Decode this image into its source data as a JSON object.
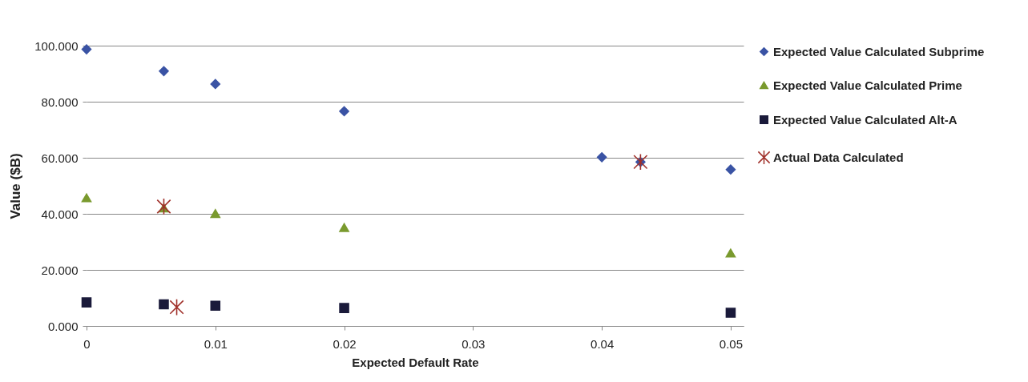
{
  "chart_data": {
    "type": "scatter",
    "xlabel": "Expected Default Rate",
    "ylabel": "Value ($B)",
    "xlim": [
      0,
      0.051
    ],
    "xticks": [
      0,
      0.01,
      0.02,
      0.03,
      0.04,
      0.05
    ],
    "ylim": [
      0,
      100
    ],
    "yticks": [
      {
        "value": 0,
        "label": "0.000"
      },
      {
        "value": 20,
        "label": "20.000"
      },
      {
        "value": 40,
        "label": "40.000"
      },
      {
        "value": 60,
        "label": "60.000"
      },
      {
        "value": 80,
        "label": "80.000"
      },
      {
        "value": 100,
        "label": "100.000"
      }
    ],
    "grid": "y",
    "legend": "right",
    "series": [
      {
        "name": "Expected Value Calculated Subprime",
        "color": "#3a53a4",
        "marker": "diamond",
        "x": [
          0,
          0.006,
          0.01,
          0.02,
          0.04,
          0.043,
          0.05
        ],
        "values": [
          98.7,
          90.9,
          86.3,
          76.6,
          60.2,
          58.5,
          55.8
        ]
      },
      {
        "name": "Expected Value Calculated Prime",
        "color": "#7a9a2e",
        "marker": "triangle",
        "x": [
          0,
          0.006,
          0.01,
          0.02,
          0.05
        ],
        "values": [
          45.7,
          42.1,
          40.1,
          35.1,
          26.0
        ]
      },
      {
        "name": "Expected Value Calculated Alt-A",
        "color": "#1a1a3a",
        "marker": "square",
        "x": [
          0,
          0.006,
          0.01,
          0.02,
          0.05
        ],
        "values": [
          8.4,
          7.7,
          7.2,
          6.4,
          4.7
        ]
      },
      {
        "name": "Actual Data Calculated",
        "color": "#a0302a",
        "marker": "cross",
        "x": [
          0.006,
          0.007,
          0.043
        ],
        "values": [
          42.6,
          6.7,
          58.5
        ]
      }
    ]
  }
}
